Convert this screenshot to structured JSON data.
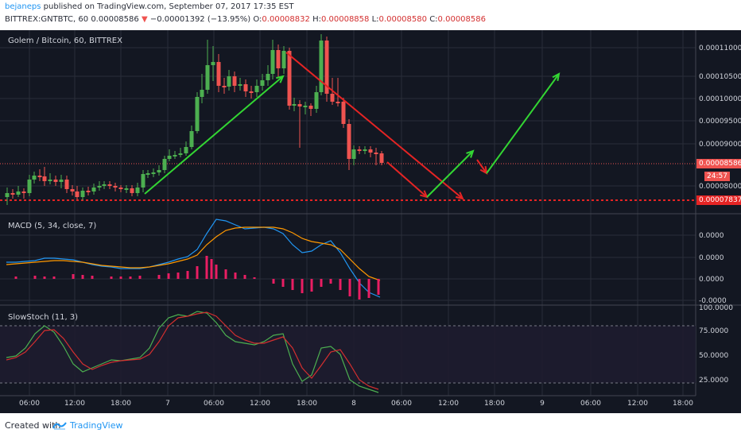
{
  "header": {
    "publisher": "bejaneps",
    "published_text": "published on TradingView.com, September 07, 2017 17:35 EST",
    "symbol_line": "BITTREX:GNTBTC, 60",
    "last_price": "0.00008586",
    "change_arrow": "▼",
    "change_text": "−0.00001392 (−13.95%)",
    "o_label": "O:",
    "o_value": "0.00008832",
    "h_label": "H:",
    "h_value": "0.00008858",
    "l_label": "L:",
    "l_value": "0.00008580",
    "c_label": "C:",
    "c_value": "0.00008586"
  },
  "main_pane": {
    "title": "Golem / Bitcoin, 60, BITTREX",
    "price_ticks": [
      "0.00011000",
      "0.00010500",
      "0.00010000",
      "0.00009500",
      "0.00009000",
      "0.00008000"
    ],
    "current_price_tag": "0.00008586",
    "countdown_tag": "24:57",
    "support_price_tag": "0.00007837"
  },
  "macd_pane": {
    "title": "MACD (5, 34, close, 7)",
    "ticks": [
      "0.0000",
      "0.0000",
      "0.0000",
      "-0.0000"
    ]
  },
  "stoch_pane": {
    "title": "SlowStoch (11, 3)",
    "ticks": [
      "100.0000",
      "75.0000",
      "50.0000",
      "25.0000"
    ]
  },
  "time_axis": {
    "labels": [
      "06:00",
      "12:00",
      "18:00",
      "7",
      "06:00",
      "12:00",
      "18:00",
      "8",
      "06:00",
      "12:00",
      "18:00",
      "9",
      "06:00",
      "12:00",
      "18:00"
    ]
  },
  "footer": {
    "created_with": "Created with",
    "brand": "TradingView"
  },
  "colors": {
    "bg": "#131722",
    "up": "#26a69a",
    "up_bright": "#4caf50",
    "down": "#ef5350",
    "grid": "#2a2e39",
    "arrow_green": "#33d633",
    "arrow_red": "#e52424",
    "macd_line": "#2196f3",
    "signal_line": "#ff9800",
    "hist": "#e91e63",
    "k_line": "#4caf50",
    "d_line": "#d32f2f"
  }
}
